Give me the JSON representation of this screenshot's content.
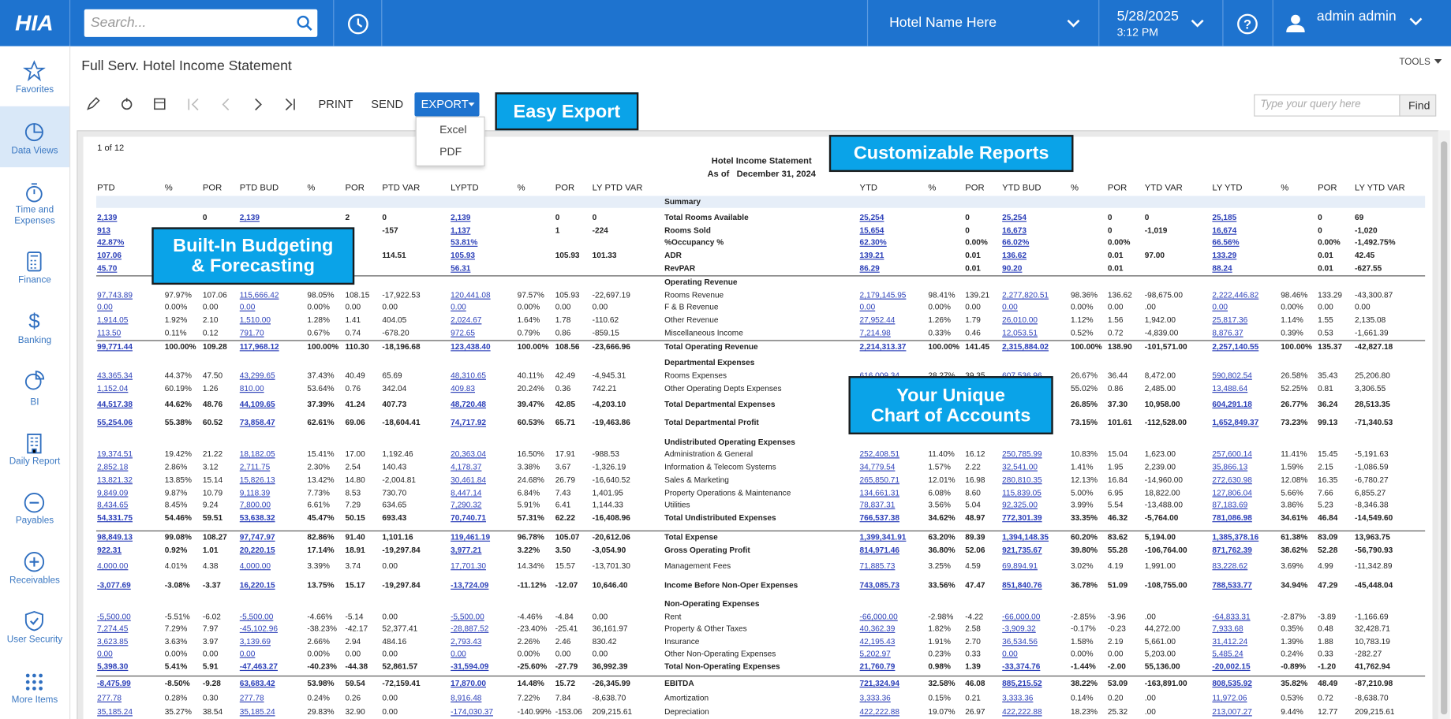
{
  "topbar": {
    "logo": "HIA",
    "search_placeholder": "Search...",
    "hotel": "Hotel Name Here",
    "date": "5/28/2025",
    "time": "3:12 PM",
    "user": "admin admin"
  },
  "nav": [
    "Favorites",
    "Data Views",
    "Time and Expenses",
    "Finance",
    "Banking",
    "BI",
    "Daily Report",
    "Payables",
    "Receivables",
    "User Security",
    "More Items"
  ],
  "page": {
    "title": "Full Serv. Hotel Income Statement",
    "tools": "TOOLS"
  },
  "toolbar": {
    "print": "PRINT",
    "send": "SEND",
    "export": "EXPORT",
    "export_options": [
      "Excel",
      "PDF"
    ],
    "query_placeholder": "Type your query here",
    "find": "Find"
  },
  "callouts": {
    "export": [
      "Easy Export"
    ],
    "reports": [
      "Customizable Reports"
    ],
    "budgeting": [
      "Built-In Budgeting",
      "& Forecasting"
    ],
    "accounts": [
      "Your Unique",
      "Chart of Accounts"
    ]
  },
  "report": {
    "pager": "1 of 12",
    "title": "Hotel Income Statement",
    "as_of": "As of   December 31, 2024",
    "columns_left": [
      "PTD",
      "%",
      "POR",
      "PTD BUD",
      "%",
      "POR",
      "PTD VAR",
      "LYPTD",
      "%",
      "POR",
      "LY PTD VAR"
    ],
    "columns_right": [
      "YTD",
      "%",
      "POR",
      "YTD BUD",
      "%",
      "POR",
      "YTD VAR",
      "LY YTD",
      "%",
      "POR",
      "LY YTD VAR"
    ],
    "rows": [
      {
        "section": "Summary"
      },
      {
        "label": "Total Rooms Available",
        "left": [
          "2,139",
          null,
          "0",
          "2,139",
          null,
          "2",
          "0",
          "2,139",
          null,
          "0",
          "0"
        ],
        "right": [
          "25,254",
          null,
          "0",
          "25,254",
          null,
          "0",
          "0",
          "25,185",
          null,
          "0",
          "69"
        ]
      },
      {
        "label": "Rooms Sold",
        "left": [
          "913",
          null,
          null,
          null,
          null,
          null,
          "-157",
          "1,137",
          null,
          "1",
          "-224"
        ],
        "right": [
          "15,654",
          null,
          "0",
          "16,673",
          null,
          "0",
          "-1,019",
          "16,674",
          null,
          "0",
          "-1,020"
        ]
      },
      {
        "label": "%Occupancy %",
        "left": [
          "42.87%",
          null,
          null,
          null,
          null,
          null,
          null,
          "53.81%",
          null,
          null,
          null
        ],
        "right": [
          "62.30%",
          null,
          "0.00%",
          "66.02%",
          null,
          "0.00%",
          null,
          "66.56%",
          null,
          "0.00%",
          "-1,492.75%"
        ]
      },
      {
        "label": "ADR",
        "left": [
          "107.06",
          null,
          null,
          null,
          null,
          null,
          "114.51",
          "105.93",
          null,
          "105.93",
          "101.33"
        ],
        "right": [
          "139.21",
          null,
          "0.01",
          "136.62",
          null,
          "0.01",
          "97.00",
          "133.29",
          null,
          "0.01",
          "42.45"
        ]
      },
      {
        "label": "RevPAR",
        "left": [
          "45.70",
          null,
          null,
          null,
          null,
          null,
          null,
          "56.31",
          null,
          null,
          null
        ],
        "right": [
          "86.29",
          null,
          "0.01",
          "90.20",
          null,
          "0.01",
          null,
          "88.24",
          null,
          "0.01",
          "-627.55"
        ]
      },
      {
        "section": "Operating Revenue"
      },
      {
        "label": "Rooms Revenue",
        "left": [
          "97,743.89",
          "97.97%",
          "107.06",
          "115,666.42",
          "98.05%",
          "108.15",
          "-17,922.53",
          "120,441.08",
          "97.57%",
          "105.93",
          "-22,697.19"
        ],
        "right": [
          "2,179,145.95",
          "98.41%",
          "139.21",
          "2,277,820.51",
          "98.36%",
          "136.62",
          "-98,675.00",
          "2,222,446.82",
          "98.46%",
          "133.29",
          "-43,300.87"
        ]
      },
      {
        "label": "F & B Revenue",
        "left": [
          "0.00",
          "0.00%",
          "0.00",
          "0.00",
          "0.00%",
          "0.00",
          "0.00",
          "0.00",
          "0.00%",
          "0.00",
          "0.00"
        ],
        "right": [
          "0.00",
          "0.00%",
          "0.00",
          "0.00",
          "0.00%",
          "0.00",
          ".00",
          "0.00",
          "0.00%",
          "0.00",
          "0.00"
        ]
      },
      {
        "label": "Other Revenue",
        "left": [
          "1,914.05",
          "1.92%",
          "2.10",
          "1,510.00",
          "1.28%",
          "1.41",
          "404.05",
          "2,024.67",
          "1.64%",
          "1.78",
          "-110.62"
        ],
        "right": [
          "27,952.44",
          "1.26%",
          "1.79",
          "26,010.00",
          "1.12%",
          "1.56",
          "1,942.00",
          "25,817.36",
          "1.14%",
          "1.55",
          "2,135.08"
        ]
      },
      {
        "label": "Miscellaneous Income",
        "left": [
          "113.50",
          "0.11%",
          "0.12",
          "791.70",
          "0.67%",
          "0.74",
          "-678.20",
          "972.65",
          "0.79%",
          "0.86",
          "-859.15"
        ],
        "right": [
          "7,214.98",
          "0.33%",
          "0.46",
          "12,053.51",
          "0.52%",
          "0.72",
          "-4,839.00",
          "8,876.37",
          "0.39%",
          "0.53",
          "-1,661.39"
        ]
      },
      {
        "label": "Total Operating Revenue",
        "left": [
          "99,771.44",
          "100.00%",
          "109.28",
          "117,968.12",
          "100.00%",
          "110.30",
          "-18,196.68",
          "123,438.40",
          "100.00%",
          "108.56",
          "-23,666.96"
        ],
        "right": [
          "2,214,313.37",
          "100.00%",
          "141.45",
          "2,315,884.02",
          "100.00%",
          "138.90",
          "-101,571.00",
          "2,257,140.55",
          "100.00%",
          "135.37",
          "-42,827.18"
        ]
      },
      {
        "section": "Departmental Expenses"
      },
      {
        "label": "Rooms Expenses",
        "left": [
          "43,365.34",
          "44.37%",
          "47.50",
          "43,299.65",
          "37.43%",
          "40.49",
          "65.69",
          "48,310.65",
          "40.11%",
          "42.49",
          "-4,945.31"
        ],
        "right": [
          "616,009.34",
          "28.27%",
          "39.35",
          "607,536.96",
          "26.67%",
          "36.44",
          "8,472.00",
          "590,802.54",
          "26.58%",
          "35.43",
          "25,206.80"
        ]
      },
      {
        "label": "Other Operating Depts Expenses",
        "left": [
          "1,152.04",
          "60.19%",
          "1.26",
          "810.00",
          "53.64%",
          "0.76",
          "342.04",
          "409.83",
          "20.24%",
          "0.36",
          "742.21"
        ],
        "right": [
          null,
          null,
          null,
          null,
          "55.02%",
          "0.86",
          "2,485.00",
          "13,488.64",
          "52.25%",
          "0.81",
          "3,306.55"
        ]
      },
      {
        "label": "Total Departmental Expenses",
        "left": [
          "44,517.38",
          "44.62%",
          "48.76",
          "44,109.65",
          "37.39%",
          "41.24",
          "407.73",
          "48,720.48",
          "39.47%",
          "42.85",
          "-4,203.10"
        ],
        "right": [
          null,
          null,
          null,
          null,
          "26.85%",
          "37.30",
          "10,958.00",
          "604,291.18",
          "26.77%",
          "36.24",
          "28,513.35"
        ]
      },
      {
        "label": "Total Departmental Profit",
        "left": [
          "55,254.06",
          "55.38%",
          "60.52",
          "73,858.47",
          "62.61%",
          "69.06",
          "-18,604.41",
          "74,717.92",
          "60.53%",
          "65.71",
          "-19,463.86"
        ],
        "right": [
          null,
          null,
          null,
          null,
          "73.15%",
          "101.61",
          "-112,528.00",
          "1,652,849.37",
          "73.23%",
          "99.13",
          "-71,340.53"
        ]
      },
      {
        "section": "Undistributed Operating Expenses"
      },
      {
        "label": "Administration & General",
        "left": [
          "19,374.51",
          "19.42%",
          "21.22",
          "18,182.05",
          "15.41%",
          "17.00",
          "1,192.46",
          "20,363.04",
          "16.50%",
          "17.91",
          "-988.53"
        ],
        "right": [
          "252,408.51",
          "11.40%",
          "16.12",
          "250,785.99",
          "10.83%",
          "15.04",
          "1,623.00",
          "257,600.14",
          "11.41%",
          "15.45",
          "-5,191.63"
        ]
      },
      {
        "label": "Information & Telecom Systems",
        "left": [
          "2,852.18",
          "2.86%",
          "3.12",
          "2,711.75",
          "2.30%",
          "2.54",
          "140.43",
          "4,178.37",
          "3.38%",
          "3.67",
          "-1,326.19"
        ],
        "right": [
          "34,779.54",
          "1.57%",
          "2.22",
          "32,541.00",
          "1.41%",
          "1.95",
          "2,239.00",
          "35,866.13",
          "1.59%",
          "2.15",
          "-1,086.59"
        ]
      },
      {
        "label": "Sales & Marketing",
        "left": [
          "13,821.32",
          "13.85%",
          "15.14",
          "15,826.13",
          "13.42%",
          "14.80",
          "-2,004.81",
          "30,461.84",
          "24.68%",
          "26.79",
          "-16,640.52"
        ],
        "right": [
          "265,850.71",
          "12.01%",
          "16.98",
          "280,810.35",
          "12.13%",
          "16.84",
          "-14,960.00",
          "272,630.98",
          "12.08%",
          "16.35",
          "-6,780.27"
        ]
      },
      {
        "label": "Property Operations & Maintenance",
        "left": [
          "9,849.09",
          "9.87%",
          "10.79",
          "9,118.39",
          "7.73%",
          "8.53",
          "730.70",
          "8,447.14",
          "6.84%",
          "7.43",
          "1,401.95"
        ],
        "right": [
          "134,661.31",
          "6.08%",
          "8.60",
          "115,839.05",
          "5.00%",
          "6.95",
          "18,822.00",
          "127,806.04",
          "5.66%",
          "7.66",
          "6,855.27"
        ]
      },
      {
        "label": "Utilities",
        "left": [
          "8,434.65",
          "8.45%",
          "9.24",
          "7,800.00",
          "6.61%",
          "7.29",
          "634.65",
          "7,290.32",
          "5.91%",
          "6.41",
          "1,144.33"
        ],
        "right": [
          "78,837.31",
          "3.56%",
          "5.04",
          "92,325.00",
          "3.99%",
          "5.54",
          "-13,488.00",
          "87,183.69",
          "3.86%",
          "5.23",
          "-8,346.38"
        ]
      },
      {
        "label": "Total Undistributed Expenses",
        "left": [
          "54,331.75",
          "54.46%",
          "59.51",
          "53,638.32",
          "45.47%",
          "50.15",
          "693.43",
          "70,740.71",
          "57.31%",
          "62.22",
          "-16,408.96"
        ],
        "right": [
          "766,537.38",
          "34.62%",
          "48.97",
          "772,301.39",
          "33.35%",
          "46.32",
          "-5,764.00",
          "781,086.98",
          "34.61%",
          "46.84",
          "-14,549.60"
        ]
      },
      {
        "label": "Total Expense",
        "left": [
          "98,849.13",
          "99.08%",
          "108.27",
          "97,747.97",
          "82.86%",
          "91.40",
          "1,101.16",
          "119,461.19",
          "96.78%",
          "105.07",
          "-20,612.06"
        ],
        "right": [
          "1,399,341.91",
          "63.20%",
          "89.39",
          "1,394,148.35",
          "60.20%",
          "83.62",
          "5,194.00",
          "1,385,378.16",
          "61.38%",
          "83.09",
          "13,963.75"
        ]
      },
      {
        "label": "Gross Operating Profit",
        "left": [
          "922.31",
          "0.92%",
          "1.01",
          "20,220.15",
          "17.14%",
          "18.91",
          "-19,297.84",
          "3,977.21",
          "3.22%",
          "3.50",
          "-3,054.90"
        ],
        "right": [
          "814,971.46",
          "36.80%",
          "52.06",
          "921,735.67",
          "39.80%",
          "55.28",
          "-106,764.00",
          "871,762.39",
          "38.62%",
          "52.28",
          "-56,790.93"
        ]
      },
      {
        "label": "Management Fees",
        "left": [
          "4,000.00",
          "4.01%",
          "4.38",
          "4,000.00",
          "3.39%",
          "3.74",
          "0.00",
          "17,701.30",
          "14.34%",
          "15.57",
          "-13,701.30"
        ],
        "right": [
          "71,885.73",
          "3.25%",
          "4.59",
          "69,894.91",
          "3.02%",
          "4.19",
          "1,991.00",
          "83,228.62",
          "3.69%",
          "4.99",
          "-11,342.89"
        ]
      },
      {
        "label": "Income Before Non-Oper Expenses",
        "left": [
          "-3,077.69",
          "-3.08%",
          "-3.37",
          "16,220.15",
          "13.75%",
          "15.17",
          "-19,297.84",
          "-13,724.09",
          "-11.12%",
          "-12.07",
          "10,646.40"
        ],
        "right": [
          "743,085.73",
          "33.56%",
          "47.47",
          "851,840.76",
          "36.78%",
          "51.09",
          "-108,755.00",
          "788,533.77",
          "34.94%",
          "47.29",
          "-45,448.04"
        ]
      },
      {
        "section": "Non-Operating Expenses"
      },
      {
        "label": "Rent",
        "left": [
          "-5,500.00",
          "-5.51%",
          "-6.02",
          "-5,500.00",
          "-4.66%",
          "-5.14",
          "0.00",
          "-5,500.00",
          "-4.46%",
          "-4.84",
          "0.00"
        ],
        "right": [
          "-66,000.00",
          "-2.98%",
          "-4.22",
          "-66,000.00",
          "-2.85%",
          "-3.96",
          ".00",
          "-64,833.31",
          "-2.87%",
          "-3.89",
          "-1,166.69"
        ]
      },
      {
        "label": "Property & Other Taxes",
        "left": [
          "7,274.45",
          "7.29%",
          "7.97",
          "-45,102.96",
          "-38.23%",
          "-42.17",
          "52,377.41",
          "-28,887.52",
          "-23.40%",
          "-25.41",
          "36,161.97"
        ],
        "right": [
          "40,362.39",
          "1.82%",
          "2.58",
          "-3,909.32",
          "-0.17%",
          "-0.23",
          "44,272.00",
          "7,933.68",
          "0.35%",
          "0.48",
          "32,428.71"
        ]
      },
      {
        "label": "Insurance",
        "left": [
          "3,623.85",
          "3.63%",
          "3.97",
          "3,139.69",
          "2.66%",
          "2.94",
          "484.16",
          "2,793.43",
          "2.26%",
          "2.46",
          "830.42"
        ],
        "right": [
          "42,195.43",
          "1.91%",
          "2.70",
          "36,534.56",
          "1.58%",
          "2.19",
          "5,661.00",
          "31,412.24",
          "1.39%",
          "1.88",
          "10,783.19"
        ]
      },
      {
        "label": "Other Non-Operating Expenses",
        "left": [
          "0.00",
          "0.00%",
          "0.00",
          "0.00",
          "0.00%",
          "0.00",
          "0.00",
          "0.00",
          "0.00%",
          "0.00",
          "0.00"
        ],
        "right": [
          "5,202.97",
          "0.23%",
          "0.33",
          "0.00",
          "0.00%",
          "0.00",
          "5,203.00",
          "5,485.24",
          "0.24%",
          "0.33",
          "-282.27"
        ]
      },
      {
        "label": "Total Non-Operating Expenses",
        "left": [
          "5,398.30",
          "5.41%",
          "5.91",
          "-47,463.27",
          "-40.23%",
          "-44.38",
          "52,861.57",
          "-31,594.09",
          "-25.60%",
          "-27.79",
          "36,992.39"
        ],
        "right": [
          "21,760.79",
          "0.98%",
          "1.39",
          "-33,374.76",
          "-1.44%",
          "-2.00",
          "55,136.00",
          "-20,002.15",
          "-0.89%",
          "-1.20",
          "41,762.94"
        ]
      },
      {
        "label": "EBITDA",
        "left": [
          "-8,475.99",
          "-8.50%",
          "-9.28",
          "63,683.42",
          "53.98%",
          "59.54",
          "-72,159.41",
          "17,870.00",
          "14.48%",
          "15.72",
          "-26,345.99"
        ],
        "right": [
          "721,324.94",
          "32.58%",
          "46.08",
          "885,215.52",
          "38.22%",
          "53.09",
          "-163,891.00",
          "808,535.92",
          "35.82%",
          "48.49",
          "-87,210.98"
        ]
      },
      {
        "label": "Amortization",
        "left": [
          "277.78",
          "0.28%",
          "0.30",
          "277.78",
          "0.24%",
          "0.26",
          "0.00",
          "8,916.48",
          "7.22%",
          "7.84",
          "-8,638.70"
        ],
        "right": [
          "3,333.36",
          "0.15%",
          "0.21",
          "3,333.36",
          "0.14%",
          "0.20",
          ".00",
          "11,972.06",
          "0.53%",
          "0.72",
          "-8,638.70"
        ]
      },
      {
        "label": "Depreciation",
        "left": [
          "35,185.24",
          "35.27%",
          "38.54",
          "35,185.24",
          "29.83%",
          "32.90",
          "0.00",
          "-174,030.37",
          "-140.99%",
          "-153.06",
          "209,215.61"
        ],
        "right": [
          "422,222.88",
          "19.07%",
          "26.97",
          "422,222.88",
          "18.23%",
          "25.32",
          ".00",
          "213,007.27",
          "9.44%",
          "12.77",
          "209,215.61"
        ]
      }
    ]
  }
}
